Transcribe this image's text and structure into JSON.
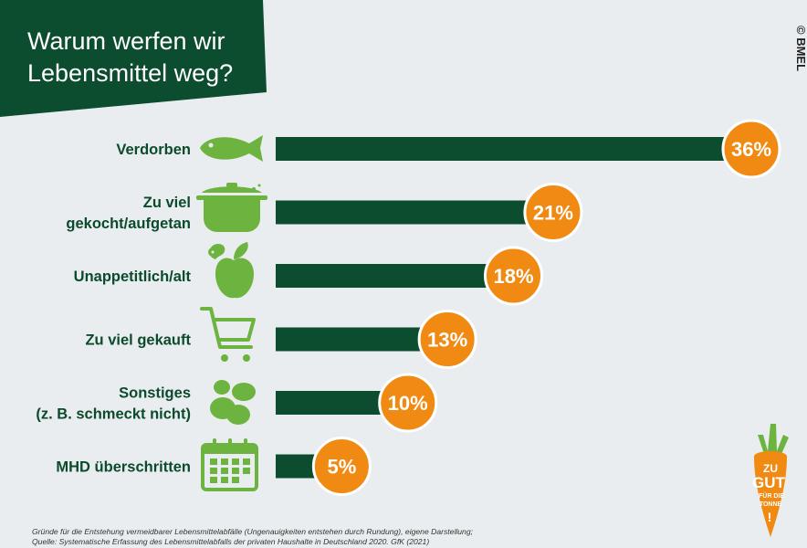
{
  "chart_data": {
    "type": "bar",
    "orientation": "horizontal",
    "title": "Warum werfen wir Lebensmittel weg?",
    "categories": [
      "Verdorben",
      "Zu viel gekocht/aufgetan",
      "Unappetitlich/alt",
      "Zu viel gekauft",
      "Sonstiges (z. B. schmeckt nicht)",
      "MHD überschritten"
    ],
    "category_lines": [
      [
        "Verdorben"
      ],
      [
        "Zu viel",
        "gekocht/aufgetan"
      ],
      [
        "Unappetitlich/alt"
      ],
      [
        "Zu viel gekauft"
      ],
      [
        "Sonstiges",
        "(z. B. schmeckt nicht)"
      ],
      [
        "MHD überschritten"
      ]
    ],
    "values": [
      36,
      21,
      18,
      13,
      10,
      5
    ],
    "value_labels": [
      "36%",
      "21%",
      "18%",
      "13%",
      "10%",
      "5%"
    ],
    "icons": [
      "fish-icon",
      "cooking-pot-icon",
      "apple-worm-icon",
      "shopping-cart-icon",
      "food-pieces-icon",
      "calendar-icon"
    ],
    "unit": "%",
    "xlim": [
      0,
      36
    ],
    "grid": false
  },
  "colors": {
    "bar": "#0b4d2e",
    "badge": "#f08a12",
    "icon": "#6db33f",
    "title_bg": "#0b4d2e",
    "label": "#0c4a2c"
  },
  "title_lines": [
    "Warum werfen wir",
    "Lebensmittel weg?"
  ],
  "copyright": "© BMEL",
  "footnote_lines": [
    "Gründe für die Entstehung vermeidbarer Lebensmittelabfälle (Ungenauigkeiten entstehen durch Rundung), eigene Darstellung;",
    "Quelle: Systematische Erfassung des Lebensmittelabfalls der privaten Haushalte in Deutschland 2020. GfK (2021)"
  ],
  "logo": {
    "lines": [
      "ZU",
      "GUT",
      "FÜR DIE",
      "TONNE",
      "!"
    ]
  }
}
